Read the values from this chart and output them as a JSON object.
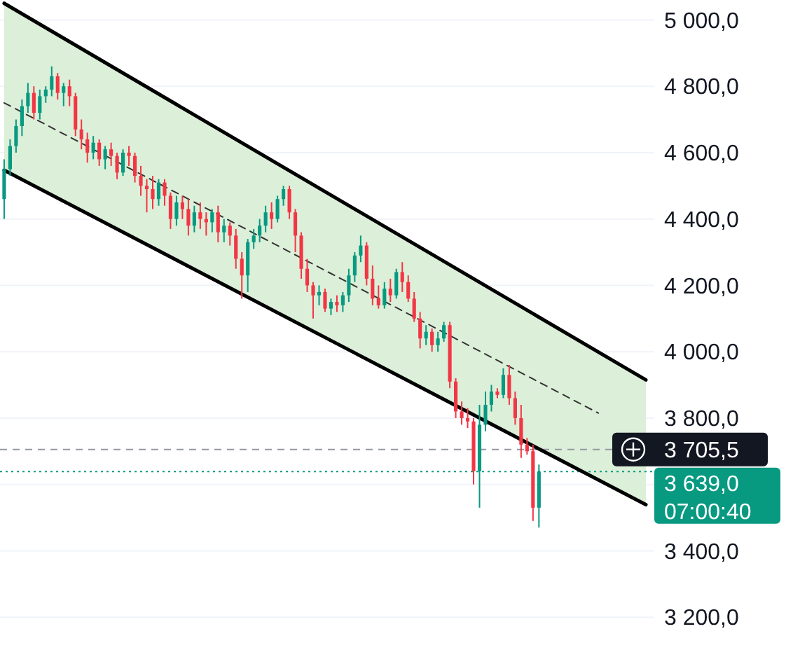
{
  "chart_data": {
    "type": "candlestick",
    "categories": [
      null,
      null,
      null,
      null,
      null,
      null,
      null,
      null,
      null,
      null,
      null,
      null,
      null,
      null,
      null,
      null,
      null,
      null,
      null,
      null,
      null,
      null,
      null,
      null,
      null,
      null,
      null,
      null,
      null,
      null,
      null,
      null,
      null,
      null,
      null,
      null,
      null,
      null,
      null,
      null,
      null,
      null,
      null,
      null,
      null,
      null,
      null,
      null,
      null,
      null,
      null,
      null,
      null,
      null,
      null,
      null,
      null,
      null,
      null,
      null,
      null,
      null,
      null,
      null,
      null,
      null,
      null,
      null,
      null,
      null,
      null,
      null,
      null,
      null,
      null,
      null,
      null,
      null,
      null,
      null,
      null,
      null,
      null,
      null,
      null,
      null,
      null,
      null,
      null,
      null,
      null,
      null,
      null,
      null,
      null,
      null,
      null,
      null,
      null,
      null,
      null,
      null,
      null,
      null,
      null,
      null,
      null,
      null,
      null
    ],
    "ohlc": [
      [
        4460,
        4580,
        4400,
        4550
      ],
      [
        4550,
        4640,
        4530,
        4620
      ],
      [
        4620,
        4700,
        4600,
        4680
      ],
      [
        4680,
        4760,
        4650,
        4740
      ],
      [
        4740,
        4810,
        4720,
        4780
      ],
      [
        4780,
        4800,
        4700,
        4720
      ],
      [
        4720,
        4790,
        4700,
        4770
      ],
      [
        4770,
        4800,
        4750,
        4790
      ],
      [
        4790,
        4860,
        4770,
        4830
      ],
      [
        4830,
        4840,
        4760,
        4780
      ],
      [
        4780,
        4810,
        4740,
        4800
      ],
      [
        4800,
        4820,
        4740,
        4770
      ],
      [
        4770,
        4780,
        4650,
        4670
      ],
      [
        4670,
        4700,
        4610,
        4640
      ],
      [
        4640,
        4660,
        4570,
        4600
      ],
      [
        4600,
        4650,
        4580,
        4630
      ],
      [
        4630,
        4640,
        4560,
        4580
      ],
      [
        4580,
        4620,
        4550,
        4610
      ],
      [
        4610,
        4630,
        4560,
        4590
      ],
      [
        4590,
        4600,
        4520,
        4540
      ],
      [
        4540,
        4610,
        4530,
        4600
      ],
      [
        4600,
        4620,
        4560,
        4590
      ],
      [
        4590,
        4600,
        4510,
        4530
      ],
      [
        4530,
        4560,
        4470,
        4500
      ],
      [
        4500,
        4520,
        4420,
        4490
      ],
      [
        4490,
        4530,
        4430,
        4460
      ],
      [
        4460,
        4520,
        4440,
        4510
      ],
      [
        4510,
        4520,
        4440,
        4470
      ],
      [
        4470,
        4480,
        4370,
        4400
      ],
      [
        4400,
        4470,
        4380,
        4450
      ],
      [
        4450,
        4470,
        4400,
        4430
      ],
      [
        4430,
        4460,
        4350,
        4380
      ],
      [
        4380,
        4440,
        4360,
        4420
      ],
      [
        4420,
        4450,
        4370,
        4400
      ],
      [
        4400,
        4420,
        4350,
        4390
      ],
      [
        4390,
        4430,
        4360,
        4420
      ],
      [
        4420,
        4440,
        4330,
        4360
      ],
      [
        4360,
        4400,
        4330,
        4380
      ],
      [
        4380,
        4390,
        4320,
        4350
      ],
      [
        4350,
        4370,
        4250,
        4280
      ],
      [
        4280,
        4300,
        4160,
        4230
      ],
      [
        4230,
        4340,
        4180,
        4330
      ],
      [
        4330,
        4370,
        4310,
        4350
      ],
      [
        4350,
        4400,
        4330,
        4380
      ],
      [
        4380,
        4440,
        4360,
        4420
      ],
      [
        4420,
        4450,
        4370,
        4400
      ],
      [
        4400,
        4470,
        4390,
        4460
      ],
      [
        4460,
        4500,
        4440,
        4490
      ],
      [
        4490,
        4500,
        4400,
        4420
      ],
      [
        4420,
        4430,
        4300,
        4350
      ],
      [
        4350,
        4360,
        4220,
        4250
      ],
      [
        4250,
        4280,
        4180,
        4200
      ],
      [
        4200,
        4210,
        4100,
        4170
      ],
      [
        4170,
        4200,
        4140,
        4180
      ],
      [
        4180,
        4190,
        4120,
        4130
      ],
      [
        4130,
        4160,
        4110,
        4150
      ],
      [
        4150,
        4170,
        4120,
        4140
      ],
      [
        4140,
        4180,
        4120,
        4170
      ],
      [
        4170,
        4250,
        4150,
        4230
      ],
      [
        4230,
        4300,
        4210,
        4290
      ],
      [
        4290,
        4350,
        4270,
        4320
      ],
      [
        4320,
        4330,
        4200,
        4220
      ],
      [
        4220,
        4260,
        4140,
        4160
      ],
      [
        4160,
        4200,
        4130,
        4140
      ],
      [
        4140,
        4210,
        4130,
        4190
      ],
      [
        4190,
        4220,
        4150,
        4170
      ],
      [
        4170,
        4250,
        4160,
        4240
      ],
      [
        4240,
        4270,
        4180,
        4210
      ],
      [
        4210,
        4230,
        4150,
        4160
      ],
      [
        4160,
        4180,
        4090,
        4100
      ],
      [
        4100,
        4120,
        4010,
        4040
      ],
      [
        4040,
        4080,
        4020,
        4060
      ],
      [
        4060,
        4070,
        4000,
        4020
      ],
      [
        4020,
        4060,
        4000,
        4040
      ],
      [
        4040,
        4090,
        4030,
        4080
      ],
      [
        4080,
        4090,
        3890,
        3910
      ],
      [
        3910,
        3920,
        3800,
        3820
      ],
      [
        3820,
        3850,
        3780,
        3800
      ],
      [
        3800,
        3830,
        3770,
        3790
      ],
      [
        3790,
        3800,
        3600,
        3640
      ],
      [
        3640,
        3840,
        3530,
        3780
      ],
      [
        3780,
        3880,
        3760,
        3840
      ],
      [
        3840,
        3900,
        3820,
        3880
      ],
      [
        3880,
        3890,
        3860,
        3870
      ],
      [
        3870,
        3950,
        3860,
        3930
      ],
      [
        3930,
        3960,
        3840,
        3860
      ],
      [
        3860,
        3880,
        3780,
        3800
      ],
      [
        3800,
        3840,
        3680,
        3720
      ],
      [
        3720,
        3740,
        3690,
        3700
      ],
      [
        3700,
        3720,
        3490,
        3530
      ],
      [
        3530,
        3660,
        3470,
        3639
      ],
      null,
      null,
      null,
      null,
      null,
      null,
      null,
      null,
      null,
      null,
      null,
      null,
      null,
      null,
      null,
      null,
      null,
      null
    ],
    "colors": [
      "#089981",
      "#089981",
      "#089981",
      "#089981",
      "#089981",
      "#f23645",
      "#089981",
      "#089981",
      "#089981",
      "#f23645",
      "#089981",
      "#f23645",
      "#f23645",
      "#f23645",
      "#f23645",
      "#089981",
      "#f23645",
      "#089981",
      "#f23645",
      "#f23645",
      "#089981",
      "#f23645",
      "#f23645",
      "#f23645",
      "#f23645",
      "#f23645",
      "#089981",
      "#f23645",
      "#f23645",
      "#089981",
      "#f23645",
      "#f23645",
      "#089981",
      "#f23645",
      "#f23645",
      "#089981",
      "#f23645",
      "#089981",
      "#f23645",
      "#f23645",
      "#f23645",
      "#089981",
      "#089981",
      "#089981",
      "#089981",
      "#f23645",
      "#089981",
      "#089981",
      "#f23645",
      "#f23645",
      "#f23645",
      "#f23645",
      "#f23645",
      "#089981",
      "#f23645",
      "#089981",
      "#f23645",
      "#089981",
      "#089981",
      "#089981",
      "#089981",
      "#f23645",
      "#f23645",
      "#f23645",
      "#089981",
      "#f23645",
      "#089981",
      "#f23645",
      "#f23645",
      "#f23645",
      "#f23645",
      "#089981",
      "#f23645",
      "#089981",
      "#089981",
      "#f23645",
      "#f23645",
      "#f23645",
      "#f23645",
      "#f23645",
      "#089981",
      "#089981",
      "#089981",
      "#f23645",
      "#089981",
      "#f23645",
      "#f23645",
      "#f23645",
      "#f23645",
      "#f23645",
      "#089981",
      null,
      null,
      null,
      null,
      null,
      null,
      null,
      null,
      null,
      null,
      null,
      null,
      null,
      null,
      null,
      null,
      null,
      null
    ],
    "series": [
      {
        "type": "line",
        "color": "#000000",
        "line_style": "solid",
        "values": [
          5050,
          null,
          null,
          null,
          null,
          null,
          null,
          null,
          null,
          null,
          null,
          null,
          null,
          null,
          null,
          null,
          null,
          null,
          null,
          null,
          null,
          null,
          null,
          null,
          null,
          null,
          null,
          null,
          null,
          null,
          null,
          null,
          null,
          null,
          null,
          null,
          null,
          null,
          null,
          null,
          null,
          null,
          null,
          null,
          null,
          null,
          null,
          null,
          null,
          null,
          null,
          null,
          null,
          null,
          null,
          null,
          null,
          null,
          null,
          null,
          null,
          null,
          null,
          null,
          null,
          null,
          null,
          null,
          null,
          null,
          null,
          null,
          null,
          null,
          null,
          null,
          null,
          null,
          null,
          null,
          null,
          null,
          null,
          null,
          null,
          null,
          null,
          null,
          null,
          null,
          null,
          null,
          null,
          null,
          null,
          null,
          null,
          null,
          null,
          null,
          null,
          null,
          null,
          null,
          null,
          null,
          null,
          null,
          3915
        ]
      },
      {
        "type": "line",
        "color": "#000000",
        "line_style": "solid",
        "values": [
          4547,
          null,
          null,
          null,
          null,
          null,
          null,
          null,
          null,
          null,
          null,
          null,
          null,
          null,
          null,
          null,
          null,
          null,
          null,
          null,
          null,
          null,
          null,
          null,
          null,
          null,
          null,
          null,
          null,
          null,
          null,
          null,
          null,
          null,
          null,
          null,
          null,
          null,
          null,
          null,
          null,
          null,
          null,
          null,
          null,
          null,
          null,
          null,
          null,
          null,
          null,
          null,
          null,
          null,
          null,
          null,
          null,
          null,
          null,
          null,
          null,
          null,
          null,
          null,
          null,
          null,
          null,
          null,
          null,
          null,
          null,
          null,
          null,
          null,
          null,
          null,
          null,
          null,
          null,
          null,
          null,
          null,
          null,
          null,
          null,
          null,
          null,
          null,
          null,
          null,
          null,
          null,
          null,
          null,
          null,
          null,
          null,
          null,
          null,
          null,
          null,
          null,
          null,
          null,
          null,
          null,
          null,
          null,
          3539
        ]
      },
      {
        "type": "line",
        "color": "#333333",
        "line_style": "dashed",
        "values": [
          4750,
          null,
          null,
          null,
          null,
          null,
          null,
          null,
          null,
          null,
          null,
          null,
          null,
          null,
          null,
          null,
          null,
          null,
          null,
          null,
          null,
          null,
          null,
          null,
          null,
          null,
          null,
          null,
          null,
          null,
          null,
          null,
          null,
          null,
          null,
          null,
          null,
          null,
          null,
          null,
          null,
          null,
          null,
          null,
          null,
          null,
          null,
          null,
          null,
          null,
          null,
          null,
          null,
          null,
          null,
          null,
          null,
          null,
          null,
          null,
          null,
          null,
          null,
          null,
          null,
          null,
          null,
          null,
          null,
          null,
          null,
          null,
          null,
          null,
          null,
          null,
          null,
          null,
          null,
          null,
          null,
          null,
          null,
          null,
          null,
          null,
          null,
          null,
          null,
          null,
          null,
          null,
          null,
          null,
          null,
          null,
          null,
          null,
          null,
          null,
          3815,
          null,
          null,
          null,
          null,
          null,
          null,
          null,
          null
        ],
        "upper": [
          5050,
          null,
          null,
          null,
          null,
          null,
          null,
          null,
          null,
          null,
          null,
          null,
          null,
          null,
          null,
          null,
          null,
          null,
          null,
          null,
          null,
          null,
          null,
          null,
          null,
          null,
          null,
          null,
          null,
          null,
          null,
          null,
          null,
          null,
          null,
          null,
          null,
          null,
          null,
          null,
          null,
          null,
          null,
          null,
          null,
          null,
          null,
          null,
          null,
          null,
          null,
          null,
          null,
          null,
          null,
          null,
          null,
          null,
          null,
          null,
          null,
          null,
          null,
          null,
          null,
          null,
          null,
          null,
          null,
          null,
          null,
          null,
          null,
          null,
          null,
          null,
          null,
          null,
          null,
          null,
          null,
          null,
          null,
          null,
          null,
          null,
          null,
          null,
          null,
          null,
          null,
          null,
          null,
          null,
          null,
          null,
          null,
          null,
          null,
          null,
          null,
          null,
          null,
          null,
          null,
          null,
          null,
          null,
          3915
        ],
        "lower": [
          4547,
          null,
          null,
          null,
          null,
          null,
          null,
          null,
          null,
          null,
          null,
          null,
          null,
          null,
          null,
          null,
          null,
          null,
          null,
          null,
          null,
          null,
          null,
          null,
          null,
          null,
          null,
          null,
          null,
          null,
          null,
          null,
          null,
          null,
          null,
          null,
          null,
          null,
          null,
          null,
          null,
          null,
          null,
          null,
          null,
          null,
          null,
          null,
          null,
          null,
          null,
          null,
          null,
          null,
          null,
          null,
          null,
          null,
          null,
          null,
          null,
          null,
          null,
          null,
          null,
          null,
          null,
          null,
          null,
          null,
          null,
          null,
          null,
          null,
          null,
          null,
          null,
          null,
          null,
          null,
          null,
          null,
          null,
          null,
          null,
          null,
          null,
          null,
          null,
          null,
          null,
          null,
          null,
          null,
          null,
          null,
          null,
          null,
          null,
          null,
          null,
          null,
          null,
          null,
          null,
          null,
          null,
          null,
          3539
        ]
      }
    ],
    "ylim": [
      3080,
      5060
    ],
    "yticks": [
      {
        "value": 3200,
        "label": "3 200,0"
      },
      {
        "value": 3400,
        "label": "3 400,0"
      },
      {
        "value": 3600,
        "label": null
      },
      {
        "value": 3800,
        "label": "3 800,0"
      },
      {
        "value": 4000,
        "label": "4 000,0"
      },
      {
        "value": 4200,
        "label": "4 200,0"
      },
      {
        "value": 4400,
        "label": "4 400,0"
      },
      {
        "value": 4600,
        "label": "4 600,0"
      },
      {
        "value": 4800,
        "label": "4 800,0"
      },
      {
        "value": 5000,
        "label": "5 000,0"
      }
    ],
    "grid": "y",
    "ref_lines": [
      {
        "axis": "y",
        "value": 3705.5,
        "label": "3 705,5",
        "color": "#9598a1",
        "line_style": "dashed"
      },
      {
        "axis": "y",
        "value": 3639,
        "label": "3 639,0",
        "color": "#089981",
        "line_style": "dotted"
      }
    ],
    "annotations": [
      "07:00:40"
    ]
  }
}
